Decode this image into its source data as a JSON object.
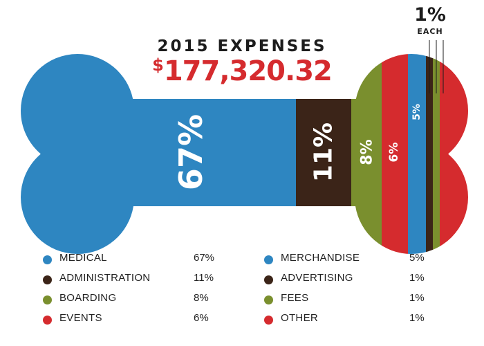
{
  "chart_data": {
    "type": "bar",
    "title": "2015 EXPENSES",
    "total_prefix": "$",
    "total_amount": "177,320.32",
    "callout_pct": "1%",
    "callout_each": "EACH",
    "categories": [
      "MEDICAL",
      "ADMINISTRATION",
      "BOARDING",
      "EVENTS",
      "MERCHANDISE",
      "ADVERTISING",
      "FEES",
      "OTHER"
    ],
    "values": [
      67,
      11,
      8,
      6,
      5,
      1,
      1,
      1
    ],
    "value_labels": [
      "67%",
      "11%",
      "8%",
      "6%",
      "5%",
      "1%",
      "1%",
      "1%"
    ],
    "colors": [
      "#2e86c1",
      "#3b2418",
      "#7a8f2e",
      "#d52b2e",
      "#2e86c1",
      "#3b2418",
      "#7a8f2e",
      "#d52b2e"
    ]
  }
}
